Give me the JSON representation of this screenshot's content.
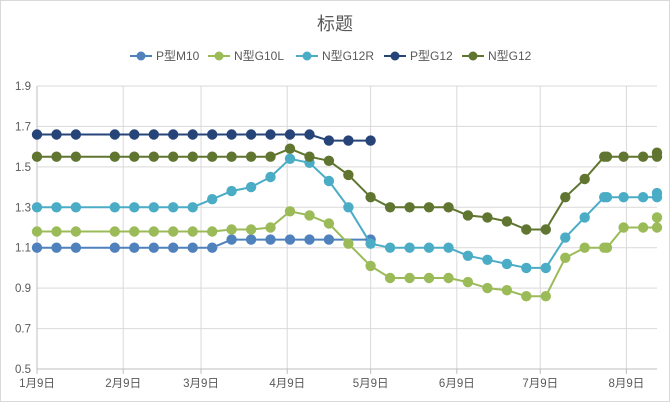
{
  "chart_data": {
    "type": "line",
    "title": "标题",
    "xlabel": "",
    "ylabel": "",
    "ylim": [
      0.5,
      1.9
    ],
    "ytick_values": [
      0.5,
      0.7,
      0.9,
      1.1,
      1.3,
      1.5,
      1.7,
      1.9
    ],
    "ytick_labels": [
      "0.5",
      "0.7",
      "0.9",
      "1.1",
      "1.3",
      "1.5",
      "1.7",
      "1.9"
    ],
    "xlim": [
      0,
      223
    ],
    "xtick_values": [
      0,
      31,
      59,
      90,
      120,
      151,
      181,
      212
    ],
    "xtick_labels": [
      "1月9日",
      "2月9日",
      "3月9日",
      "4月9日",
      "5月9日",
      "6月9日",
      "7月9日",
      "8月9日"
    ],
    "grid": true,
    "legend_position": "top",
    "series": [
      {
        "name": "P型M10",
        "color": "#4f81bd",
        "x": [
          0,
          7,
          14,
          28,
          35,
          42,
          49,
          56,
          63,
          70,
          77,
          84,
          91,
          98,
          105,
          120
        ],
        "values": [
          1.1,
          1.1,
          1.1,
          1.1,
          1.1,
          1.1,
          1.1,
          1.1,
          1.1,
          1.14,
          1.14,
          1.14,
          1.14,
          1.14,
          1.14,
          1.14
        ]
      },
      {
        "name": "N型G10L",
        "color": "#9bbb59",
        "x": [
          0,
          7,
          14,
          28,
          35,
          42,
          49,
          56,
          63,
          70,
          77,
          84,
          91,
          98,
          105,
          112,
          120,
          127,
          134,
          141,
          148,
          155,
          162,
          169,
          176,
          183,
          190,
          197,
          204,
          205,
          211,
          218,
          223,
          223
        ],
        "values": [
          1.18,
          1.18,
          1.18,
          1.18,
          1.18,
          1.18,
          1.18,
          1.18,
          1.18,
          1.19,
          1.19,
          1.2,
          1.28,
          1.26,
          1.22,
          1.12,
          1.01,
          0.95,
          0.95,
          0.95,
          0.95,
          0.93,
          0.9,
          0.89,
          0.86,
          0.86,
          1.05,
          1.1,
          1.1,
          1.1,
          1.2,
          1.2,
          1.2,
          1.25
        ]
      },
      {
        "name": "N型G12R",
        "color": "#4bacc6",
        "x": [
          0,
          7,
          14,
          28,
          35,
          42,
          49,
          56,
          63,
          70,
          77,
          84,
          91,
          98,
          105,
          112,
          120,
          127,
          134,
          141,
          148,
          155,
          162,
          169,
          176,
          183,
          190,
          197,
          204,
          205,
          211,
          218,
          223,
          223
        ],
        "values": [
          1.3,
          1.3,
          1.3,
          1.3,
          1.3,
          1.3,
          1.3,
          1.3,
          1.34,
          1.38,
          1.4,
          1.45,
          1.54,
          1.52,
          1.43,
          1.3,
          1.12,
          1.1,
          1.1,
          1.1,
          1.1,
          1.06,
          1.04,
          1.02,
          1.0,
          1.0,
          1.15,
          1.25,
          1.35,
          1.35,
          1.35,
          1.35,
          1.35,
          1.37
        ]
      },
      {
        "name": "P型G12",
        "color": "#264478",
        "x": [
          0,
          7,
          14,
          28,
          35,
          42,
          49,
          56,
          63,
          70,
          77,
          84,
          91,
          98,
          105,
          112,
          120
        ],
        "values": [
          1.66,
          1.66,
          1.66,
          1.66,
          1.66,
          1.66,
          1.66,
          1.66,
          1.66,
          1.66,
          1.66,
          1.66,
          1.66,
          1.66,
          1.63,
          1.63,
          1.63
        ]
      },
      {
        "name": "N型G12",
        "color": "#5f7530",
        "x": [
          0,
          7,
          14,
          28,
          35,
          42,
          49,
          56,
          63,
          70,
          77,
          84,
          91,
          98,
          105,
          112,
          120,
          127,
          134,
          141,
          148,
          155,
          162,
          169,
          176,
          183,
          190,
          197,
          204,
          205,
          211,
          218,
          223,
          223
        ],
        "values": [
          1.55,
          1.55,
          1.55,
          1.55,
          1.55,
          1.55,
          1.55,
          1.55,
          1.55,
          1.55,
          1.55,
          1.55,
          1.59,
          1.55,
          1.53,
          1.46,
          1.35,
          1.3,
          1.3,
          1.3,
          1.3,
          1.26,
          1.25,
          1.23,
          1.19,
          1.19,
          1.35,
          1.44,
          1.55,
          1.55,
          1.55,
          1.55,
          1.55,
          1.57
        ]
      }
    ]
  }
}
